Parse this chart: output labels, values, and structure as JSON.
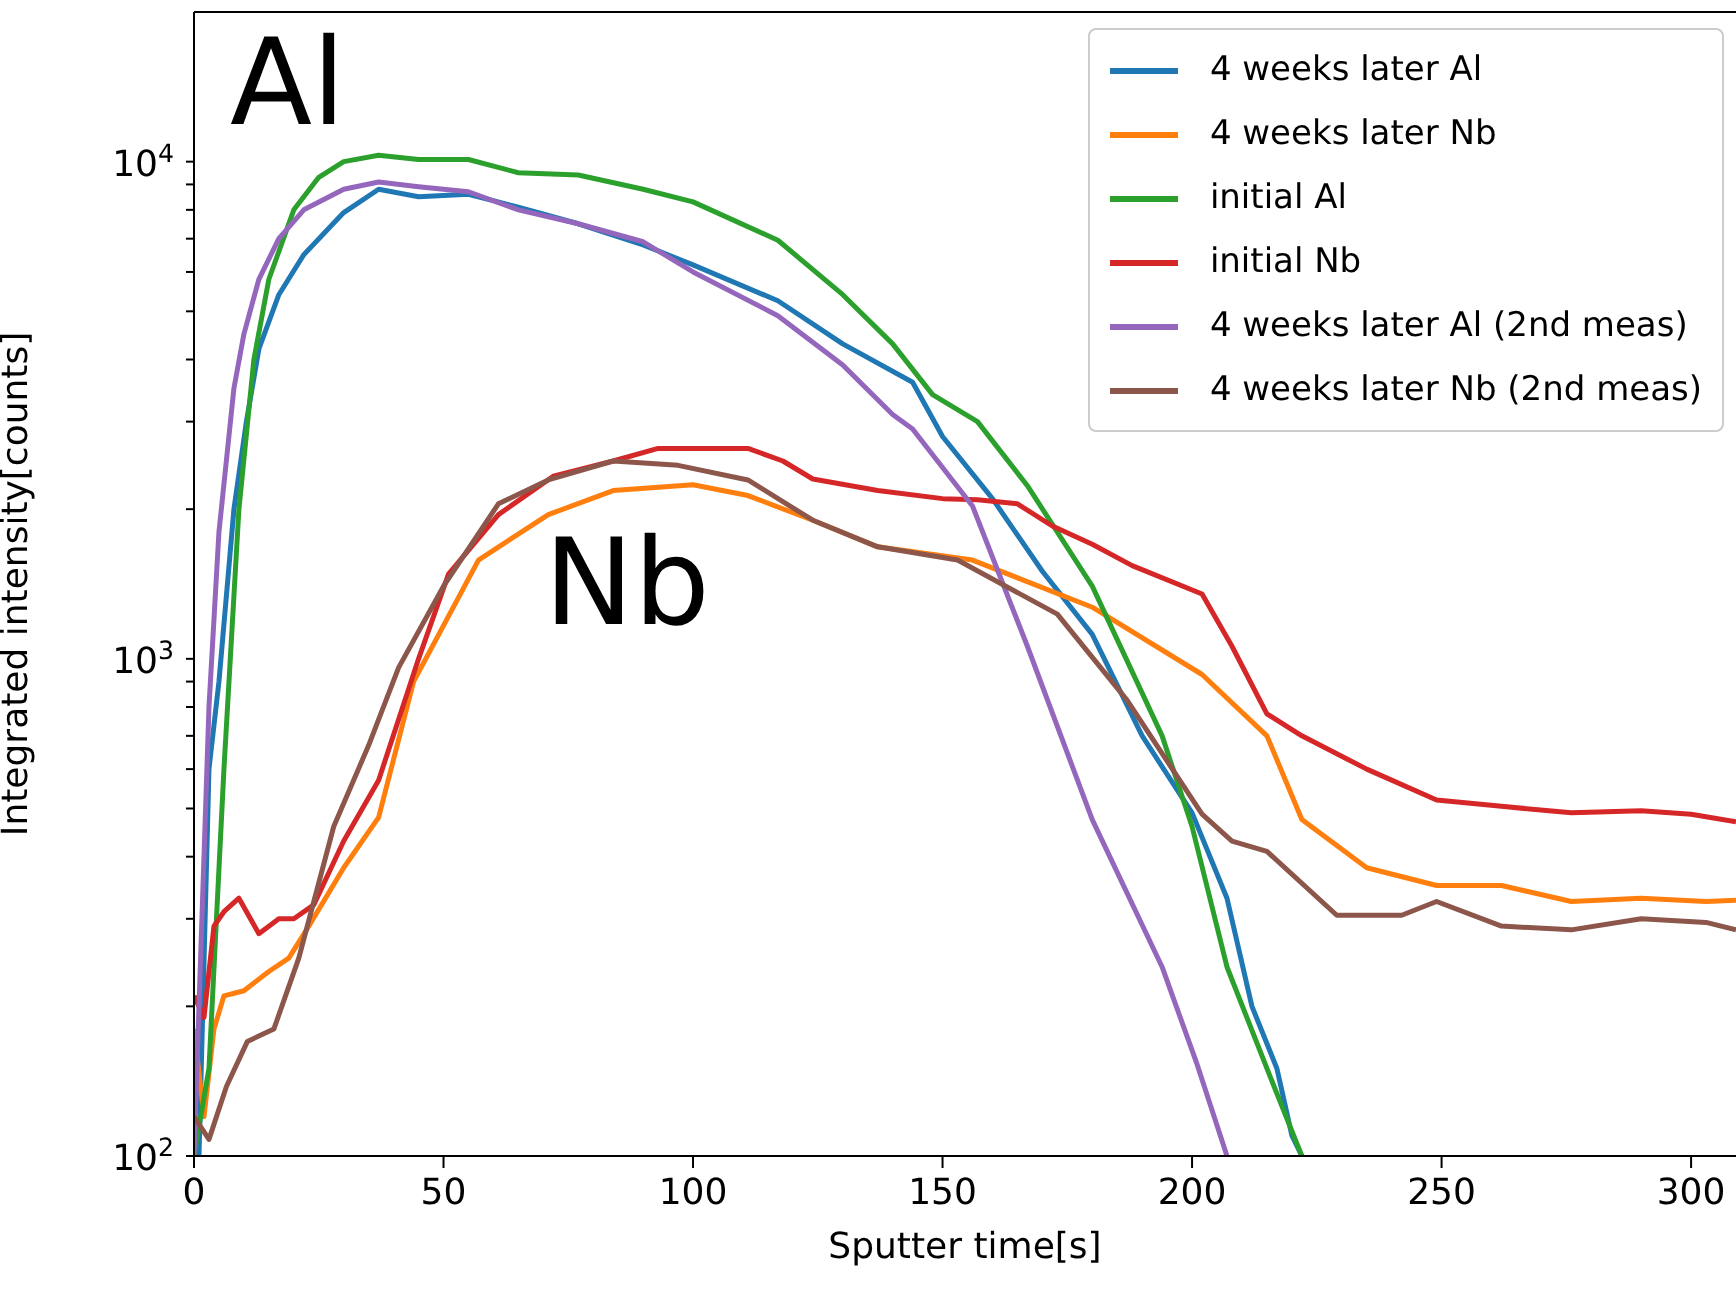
{
  "chart_data": {
    "type": "line",
    "xlabel": "Sputter time[s]",
    "ylabel": "Integrated intensity[counts]",
    "xlim": [
      0,
      309
    ],
    "xticks": [
      0,
      50,
      100,
      150,
      200,
      250,
      300
    ],
    "ylim": [
      100,
      20000
    ],
    "log": "y",
    "yticks": [
      {
        "value": 100,
        "label": "10$^{2}$"
      },
      {
        "value": 200,
        "label": null
      },
      {
        "value": 300,
        "label": null
      },
      {
        "value": 400,
        "label": null
      },
      {
        "value": 500,
        "label": null
      },
      {
        "value": 600,
        "label": null
      },
      {
        "value": 700,
        "label": null
      },
      {
        "value": 800,
        "label": null
      },
      {
        "value": 900,
        "label": null
      },
      {
        "value": 1000,
        "label": "10$^{3}$"
      },
      {
        "value": 2000,
        "label": null
      },
      {
        "value": 3000,
        "label": null
      },
      {
        "value": 4000,
        "label": null
      },
      {
        "value": 5000,
        "label": null
      },
      {
        "value": 6000,
        "label": null
      },
      {
        "value": 7000,
        "label": null
      },
      {
        "value": 8000,
        "label": null
      },
      {
        "value": 9000,
        "label": null
      },
      {
        "value": 10000,
        "label": "10$^{4}$"
      }
    ],
    "grid": false,
    "legend": "top right",
    "marker": "none",
    "line_style": "solid",
    "annotations": [
      "Al",
      "Nb"
    ],
    "series": [
      {
        "name": "4 weeks later Al",
        "color": "#1f77b4",
        "x": [
          0,
          1,
          3,
          5,
          8,
          10.5,
          13,
          17,
          22,
          30,
          37,
          45,
          55,
          65,
          77,
          90,
          100,
          117,
          130,
          144,
          150,
          160,
          170,
          180,
          190,
          200,
          207,
          212,
          217,
          220,
          222
        ],
        "values": [
          100,
          100,
          600,
          900,
          2000,
          3000,
          4200,
          5400,
          6500,
          7900,
          8800,
          8500,
          8600,
          8100,
          7500,
          6800,
          6200,
          5250,
          4300,
          3600,
          2800,
          2100,
          1500,
          1120,
          700,
          490,
          330,
          200,
          150,
          110,
          100
        ]
      },
      {
        "name": "4 weeks later Nb",
        "color": "#ff7f0e",
        "x": [
          0,
          2,
          4,
          6,
          10,
          15,
          19,
          23,
          30,
          37,
          44,
          57,
          71,
          84,
          100,
          111,
          124,
          137,
          156,
          180,
          202,
          215,
          222,
          235,
          249,
          262,
          276,
          290,
          303,
          309
        ],
        "values": [
          180,
          120,
          180,
          210,
          215,
          235,
          250,
          290,
          380,
          480,
          900,
          1580,
          1950,
          2180,
          2240,
          2130,
          1900,
          1680,
          1580,
          1270,
          930,
          700,
          475,
          380,
          350,
          350,
          325,
          330,
          325,
          327
        ]
      },
      {
        "name": "initial Al",
        "color": "#2ca02c",
        "x": [
          0,
          3,
          6,
          9,
          12,
          15,
          20,
          25,
          30,
          37,
          45,
          55,
          65,
          77,
          90,
          100,
          117,
          130,
          140,
          148,
          157,
          167,
          180,
          194,
          200,
          207,
          215,
          222
        ],
        "values": [
          100,
          150,
          600,
          2000,
          4000,
          5800,
          8000,
          9300,
          10000,
          10300,
          10100,
          10100,
          9500,
          9400,
          8800,
          8300,
          6950,
          5400,
          4300,
          3400,
          3000,
          2230,
          1400,
          700,
          460,
          240,
          150,
          100
        ]
      },
      {
        "name": "initial Nb",
        "color": "#d62728",
        "x": [
          0,
          2,
          4,
          6,
          9,
          13,
          17,
          20,
          24,
          30,
          37,
          45,
          51,
          61,
          72,
          84,
          93,
          100,
          111,
          118,
          124,
          137,
          150,
          157,
          165,
          172,
          180,
          188,
          202,
          208,
          215,
          222,
          235,
          249,
          262,
          276,
          290,
          300,
          309
        ],
        "values": [
          210,
          190,
          290,
          310,
          330,
          280,
          300,
          300,
          320,
          430,
          570,
          1000,
          1480,
          1950,
          2330,
          2500,
          2650,
          2650,
          2650,
          2500,
          2300,
          2180,
          2100,
          2090,
          2050,
          1850,
          1700,
          1540,
          1350,
          1060,
          775,
          700,
          600,
          520,
          505,
          490,
          495,
          487,
          470
        ]
      },
      {
        "name": "4 weeks later Al (2nd meas)",
        "color": "#9467bd",
        "x": [
          0,
          3,
          5,
          8,
          10,
          13,
          17,
          22,
          30,
          37,
          45,
          55,
          65,
          77,
          90,
          100,
          117,
          130,
          140,
          144,
          156,
          167,
          180,
          194,
          201,
          207
        ],
        "values": [
          100,
          800,
          1800,
          3500,
          4500,
          5800,
          7000,
          8000,
          8800,
          9100,
          8900,
          8700,
          8000,
          7500,
          6900,
          6000,
          4900,
          3900,
          3100,
          2900,
          2030,
          1060,
          475,
          240,
          153,
          100
        ]
      },
      {
        "name": "4 weeks later Nb (2nd meas)",
        "color": "#8c564b",
        "x": [
          0,
          3,
          6.5,
          10.7,
          16,
          21,
          28,
          35,
          41,
          50,
          61,
          71,
          84,
          97,
          111,
          124,
          137,
          153,
          173,
          187,
          202,
          208,
          215,
          229,
          242,
          249,
          262,
          276,
          290,
          303,
          309
        ],
        "values": [
          120,
          108,
          138,
          170,
          180,
          250,
          460,
          670,
          960,
          1400,
          2050,
          2290,
          2500,
          2450,
          2290,
          1900,
          1680,
          1580,
          1230,
          825,
          487,
          430,
          410,
          305,
          305,
          325,
          290,
          285,
          300,
          295,
          285
        ]
      }
    ]
  }
}
